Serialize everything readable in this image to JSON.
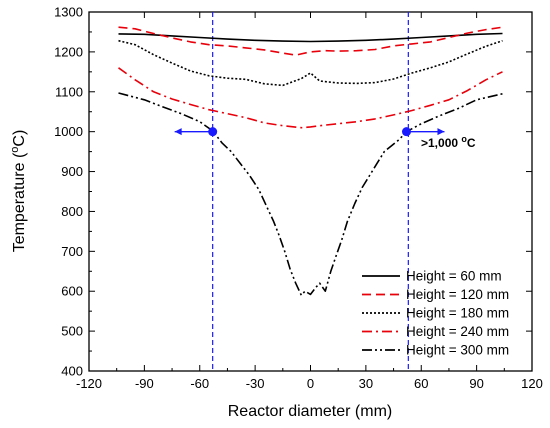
{
  "chart_data": {
    "type": "line",
    "xlabel": "Reactor diameter (mm)",
    "ylabel_main": "Temperature (",
    "ylabel_sup": "o",
    "ylabel_end": "C)",
    "xlim": [
      -120,
      120
    ],
    "ylim": [
      400,
      1300
    ],
    "xticks": [
      "-120",
      "-90",
      "-60",
      "-30",
      "0",
      "30",
      "60",
      "90",
      "120"
    ],
    "yticks": [
      "400",
      "500",
      "600",
      "700",
      "800",
      "900",
      "1000",
      "1100",
      "1200",
      "1300"
    ],
    "grid": false,
    "legend_position": "bottom-right",
    "annotation": {
      "text": ">1,000 ",
      "sup": "o",
      "end": "C"
    },
    "markers": [
      {
        "x": -53,
        "y": 1000
      },
      {
        "x": 52,
        "y": 1000
      }
    ],
    "reference_lines_x": [
      -53,
      53
    ],
    "series": [
      {
        "name": "Height = 60 mm",
        "color": "#000000",
        "dash": "",
        "x": [
          -104,
          -90,
          -75,
          -60,
          -45,
          -30,
          -15,
          0,
          15,
          30,
          45,
          60,
          75,
          90,
          104
        ],
        "y": [
          1245,
          1244,
          1240,
          1236,
          1232,
          1229,
          1227,
          1226,
          1227,
          1229,
          1232,
          1236,
          1240,
          1244,
          1246
        ]
      },
      {
        "name": "Height = 120 mm",
        "color": "#e8000b",
        "dash": "9,5",
        "x": [
          -104,
          -95,
          -85,
          -75,
          -65,
          -55,
          -45,
          -35,
          -25,
          -15,
          -8,
          0,
          8,
          15,
          25,
          35,
          45,
          55,
          65,
          75,
          85,
          95,
          104
        ],
        "y": [
          1262,
          1258,
          1246,
          1235,
          1225,
          1218,
          1215,
          1210,
          1205,
          1197,
          1192,
          1200,
          1203,
          1202,
          1203,
          1206,
          1215,
          1220,
          1225,
          1236,
          1247,
          1256,
          1262
        ]
      },
      {
        "name": "Height = 180 mm",
        "color": "#000000",
        "dash": "2,2",
        "x": [
          -104,
          -95,
          -85,
          -75,
          -65,
          -55,
          -45,
          -35,
          -25,
          -15,
          -5,
          0,
          5,
          15,
          25,
          35,
          45,
          55,
          65,
          75,
          85,
          95,
          104
        ],
        "y": [
          1228,
          1218,
          1193,
          1172,
          1152,
          1140,
          1134,
          1131,
          1120,
          1116,
          1133,
          1147,
          1127,
          1122,
          1121,
          1123,
          1132,
          1147,
          1160,
          1175,
          1195,
          1214,
          1228
        ]
      },
      {
        "name": "Height = 240 mm",
        "color": "#e8000b",
        "dash": "10,4,2,4",
        "x": [
          -104,
          -95,
          -85,
          -75,
          -65,
          -55,
          -45,
          -35,
          -25,
          -15,
          -5,
          0,
          5,
          15,
          25,
          35,
          45,
          55,
          65,
          75,
          85,
          95,
          104
        ],
        "y": [
          1160,
          1130,
          1100,
          1082,
          1068,
          1055,
          1045,
          1035,
          1022,
          1015,
          1010,
          1012,
          1015,
          1020,
          1025,
          1032,
          1042,
          1053,
          1066,
          1080,
          1103,
          1130,
          1150
        ]
      },
      {
        "name": "Height = 300 mm",
        "color": "#000000",
        "dash": "10,3,2,3,2,3",
        "x": [
          -104,
          -90,
          -80,
          -70,
          -60,
          -53,
          -48,
          -43,
          -38,
          -33,
          -28,
          -24,
          -20,
          -17,
          -14,
          -11,
          -8,
          -5,
          -3,
          0,
          3,
          5,
          8,
          11,
          14,
          17,
          20,
          24,
          28,
          32,
          36,
          40,
          44,
          48,
          52,
          60,
          70,
          80,
          90,
          104
        ],
        "y": [
          1097,
          1080,
          1062,
          1045,
          1025,
          1002,
          972,
          950,
          920,
          890,
          855,
          815,
          775,
          740,
          700,
          655,
          620,
          590,
          600,
          592,
          610,
          620,
          600,
          650,
          690,
          730,
          775,
          820,
          860,
          890,
          920,
          950,
          965,
          980,
          1000,
          1020,
          1040,
          1058,
          1080,
          1095
        ]
      }
    ]
  }
}
